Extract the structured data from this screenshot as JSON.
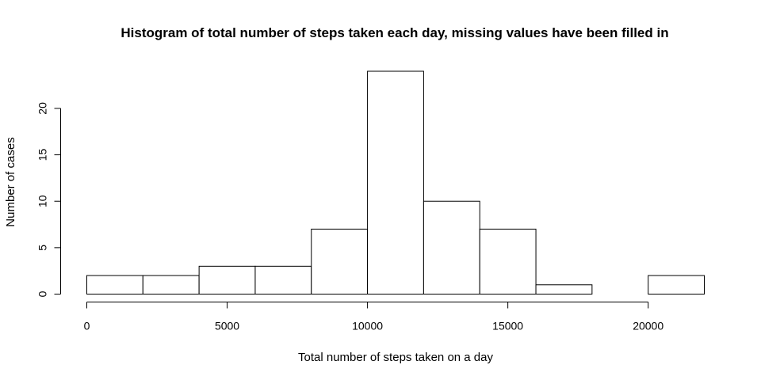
{
  "chart_data": {
    "type": "bar",
    "title": "Histogram of total number of steps taken each day, missing values have been filled in",
    "xlabel": "Total number of steps taken on a day",
    "ylabel": "Number of cases",
    "bins": [
      {
        "from": 0,
        "to": 2000,
        "count": 2
      },
      {
        "from": 2000,
        "to": 4000,
        "count": 2
      },
      {
        "from": 4000,
        "to": 6000,
        "count": 3
      },
      {
        "from": 6000,
        "to": 8000,
        "count": 3
      },
      {
        "from": 8000,
        "to": 10000,
        "count": 7
      },
      {
        "from": 10000,
        "to": 12000,
        "count": 24
      },
      {
        "from": 12000,
        "to": 14000,
        "count": 10
      },
      {
        "from": 14000,
        "to": 16000,
        "count": 7
      },
      {
        "from": 16000,
        "to": 18000,
        "count": 1
      },
      {
        "from": 18000,
        "to": 20000,
        "count": 0
      },
      {
        "from": 20000,
        "to": 22000,
        "count": 2
      }
    ],
    "xlim": [
      0,
      22000
    ],
    "ylim": [
      0,
      24
    ],
    "x_ticks": [
      0,
      5000,
      10000,
      15000,
      20000
    ],
    "y_ticks": [
      0,
      5,
      10,
      15,
      20
    ],
    "grid": false,
    "colors": {
      "bar_fill": "#ffffff",
      "bar_stroke": "#000000"
    }
  }
}
